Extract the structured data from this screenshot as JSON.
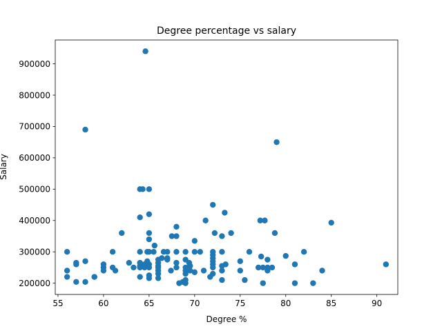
{
  "chart_data": {
    "type": "scatter",
    "title": "Degree percentage vs salary",
    "xlabel": "Degree %",
    "ylabel": "Salary",
    "xlim": [
      54.7,
      92.3
    ],
    "ylim": [
      164000,
      976000
    ],
    "xticks": [
      55,
      60,
      65,
      70,
      75,
      80,
      85,
      90
    ],
    "yticks": [
      200000,
      300000,
      400000,
      500000,
      600000,
      700000,
      800000,
      900000
    ],
    "grid": false,
    "marker_color": "#1f77b4",
    "points": [
      {
        "x": 56,
        "y": 300000
      },
      {
        "x": 56,
        "y": 240000
      },
      {
        "x": 56,
        "y": 220000
      },
      {
        "x": 57,
        "y": 260000
      },
      {
        "x": 57,
        "y": 265000
      },
      {
        "x": 57,
        "y": 204000
      },
      {
        "x": 58,
        "y": 690000
      },
      {
        "x": 58,
        "y": 270000
      },
      {
        "x": 58,
        "y": 204000
      },
      {
        "x": 59,
        "y": 220000
      },
      {
        "x": 59,
        "y": 220000
      },
      {
        "x": 60,
        "y": 260000
      },
      {
        "x": 60,
        "y": 250000
      },
      {
        "x": 60,
        "y": 240000
      },
      {
        "x": 61,
        "y": 300000
      },
      {
        "x": 61,
        "y": 250000
      },
      {
        "x": 61.3,
        "y": 240000
      },
      {
        "x": 62,
        "y": 360000
      },
      {
        "x": 62.8,
        "y": 265000
      },
      {
        "x": 63.3,
        "y": 250000
      },
      {
        "x": 64,
        "y": 500000
      },
      {
        "x": 64.3,
        "y": 500000
      },
      {
        "x": 64,
        "y": 410000
      },
      {
        "x": 64,
        "y": 300000
      },
      {
        "x": 64,
        "y": 265000
      },
      {
        "x": 64,
        "y": 255000
      },
      {
        "x": 64,
        "y": 250000
      },
      {
        "x": 64,
        "y": 220000
      },
      {
        "x": 64.5,
        "y": 260000
      },
      {
        "x": 64.5,
        "y": 250000
      },
      {
        "x": 64.6,
        "y": 940000
      },
      {
        "x": 64.8,
        "y": 300000
      },
      {
        "x": 64.8,
        "y": 270000
      },
      {
        "x": 65,
        "y": 500000
      },
      {
        "x": 65,
        "y": 420000
      },
      {
        "x": 65,
        "y": 360000
      },
      {
        "x": 65,
        "y": 340000
      },
      {
        "x": 65,
        "y": 300000
      },
      {
        "x": 65,
        "y": 260000
      },
      {
        "x": 65,
        "y": 250000
      },
      {
        "x": 65,
        "y": 225000
      },
      {
        "x": 65,
        "y": 216000
      },
      {
        "x": 65.5,
        "y": 300000
      },
      {
        "x": 65.6,
        "y": 320000
      },
      {
        "x": 66,
        "y": 275000
      },
      {
        "x": 66,
        "y": 265000
      },
      {
        "x": 66,
        "y": 255000
      },
      {
        "x": 66,
        "y": 250000
      },
      {
        "x": 66,
        "y": 240000
      },
      {
        "x": 66,
        "y": 230000
      },
      {
        "x": 66,
        "y": 216000
      },
      {
        "x": 66.4,
        "y": 280000
      },
      {
        "x": 66.6,
        "y": 300000
      },
      {
        "x": 67,
        "y": 300000
      },
      {
        "x": 67,
        "y": 280000
      },
      {
        "x": 67,
        "y": 275000
      },
      {
        "x": 67.4,
        "y": 240000
      },
      {
        "x": 67.5,
        "y": 350000
      },
      {
        "x": 68,
        "y": 380000
      },
      {
        "x": 68,
        "y": 350000
      },
      {
        "x": 68,
        "y": 300000
      },
      {
        "x": 68,
        "y": 265000
      },
      {
        "x": 68,
        "y": 250000
      },
      {
        "x": 68.3,
        "y": 200000
      },
      {
        "x": 68.7,
        "y": 204000
      },
      {
        "x": 69,
        "y": 300000
      },
      {
        "x": 69,
        "y": 275000
      },
      {
        "x": 69,
        "y": 250000
      },
      {
        "x": 69,
        "y": 240000
      },
      {
        "x": 69,
        "y": 230000
      },
      {
        "x": 69,
        "y": 210000
      },
      {
        "x": 69,
        "y": 200000
      },
      {
        "x": 69.4,
        "y": 265000
      },
      {
        "x": 69.5,
        "y": 255000
      },
      {
        "x": 69.5,
        "y": 240000
      },
      {
        "x": 70,
        "y": 335000
      },
      {
        "x": 70,
        "y": 300000
      },
      {
        "x": 70,
        "y": 235000
      },
      {
        "x": 70.6,
        "y": 300000
      },
      {
        "x": 71,
        "y": 240000
      },
      {
        "x": 71.2,
        "y": 400000
      },
      {
        "x": 71.7,
        "y": 220000
      },
      {
        "x": 72,
        "y": 450000
      },
      {
        "x": 72,
        "y": 300000
      },
      {
        "x": 72,
        "y": 290000
      },
      {
        "x": 72,
        "y": 280000
      },
      {
        "x": 72,
        "y": 270000
      },
      {
        "x": 72,
        "y": 260000
      },
      {
        "x": 72,
        "y": 250000
      },
      {
        "x": 72,
        "y": 230000
      },
      {
        "x": 72.2,
        "y": 360000
      },
      {
        "x": 73,
        "y": 350000
      },
      {
        "x": 73,
        "y": 300000
      },
      {
        "x": 73,
        "y": 255000
      },
      {
        "x": 73,
        "y": 240000
      },
      {
        "x": 73,
        "y": 210000
      },
      {
        "x": 73.3,
        "y": 425000
      },
      {
        "x": 73.4,
        "y": 260000
      },
      {
        "x": 74,
        "y": 360000
      },
      {
        "x": 75,
        "y": 270000
      },
      {
        "x": 75,
        "y": 240000
      },
      {
        "x": 75.5,
        "y": 210000
      },
      {
        "x": 76,
        "y": 300000
      },
      {
        "x": 77,
        "y": 250000
      },
      {
        "x": 77.2,
        "y": 400000
      },
      {
        "x": 77.3,
        "y": 285000
      },
      {
        "x": 77.5,
        "y": 250000
      },
      {
        "x": 77.5,
        "y": 200000
      },
      {
        "x": 77.7,
        "y": 400000
      },
      {
        "x": 78,
        "y": 275000
      },
      {
        "x": 78,
        "y": 250000
      },
      {
        "x": 78,
        "y": 240000
      },
      {
        "x": 78.5,
        "y": 250000
      },
      {
        "x": 78.8,
        "y": 360000
      },
      {
        "x": 79,
        "y": 650000
      },
      {
        "x": 80,
        "y": 287000
      },
      {
        "x": 81,
        "y": 260000
      },
      {
        "x": 81,
        "y": 200000
      },
      {
        "x": 82,
        "y": 300000
      },
      {
        "x": 83,
        "y": 200000
      },
      {
        "x": 84,
        "y": 240000
      },
      {
        "x": 85,
        "y": 393000
      },
      {
        "x": 91,
        "y": 260000
      }
    ]
  }
}
